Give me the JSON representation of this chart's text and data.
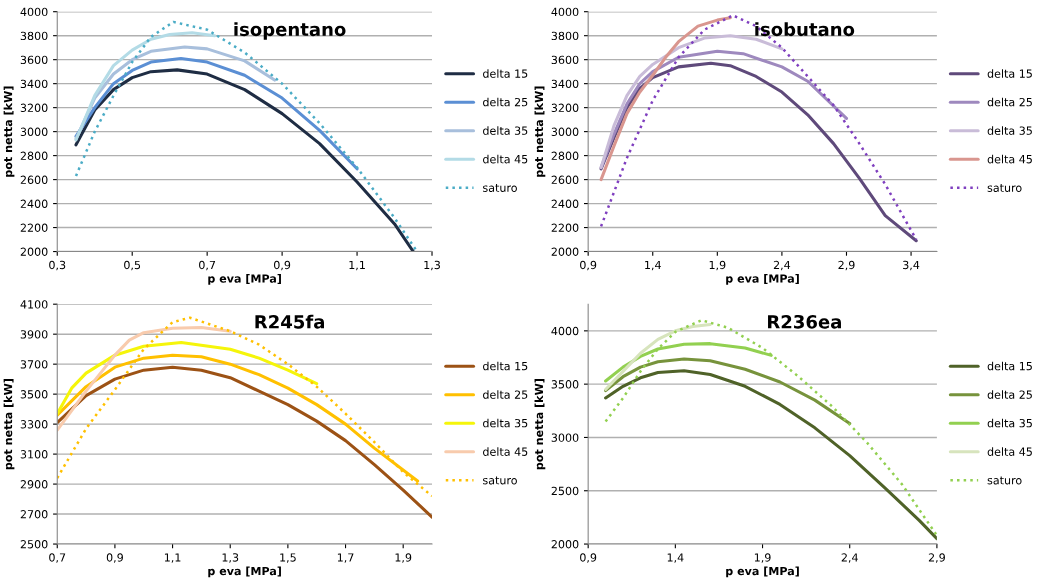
{
  "chart_data": [
    {
      "type": "line",
      "title": "isopentano",
      "xlabel": "p eva [MPa]",
      "ylabel": "pot netta [kW]",
      "grid": "y",
      "legend": "right",
      "xlim": [
        0.3,
        1.3
      ],
      "ylim": [
        2000,
        4000
      ],
      "xticks": [
        {
          "value": 0.3,
          "label": "0,3"
        },
        {
          "value": 0.5,
          "label": "0,5"
        },
        {
          "value": 0.7,
          "label": "0,7"
        },
        {
          "value": 0.9,
          "label": "0,9"
        },
        {
          "value": 1.1,
          "label": "1,1"
        },
        {
          "value": 1.3,
          "label": "1,3"
        }
      ],
      "yticks": [
        2000,
        2200,
        2400,
        2600,
        2800,
        3000,
        3200,
        3400,
        3600,
        3800,
        4000
      ],
      "series": [
        {
          "name": "delta 15",
          "color": "#1f2d44",
          "x": [
            0.35,
            0.4,
            0.45,
            0.5,
            0.55,
            0.62,
            0.7,
            0.8,
            0.9,
            1.0,
            1.1,
            1.2,
            1.25
          ],
          "values": [
            2890,
            3180,
            3350,
            3450,
            3500,
            3515,
            3480,
            3350,
            3150,
            2900,
            2580,
            2230,
            2000
          ]
        },
        {
          "name": "delta 25",
          "color": "#5b8fd4",
          "x": [
            0.35,
            0.4,
            0.45,
            0.5,
            0.55,
            0.63,
            0.7,
            0.8,
            0.9,
            1.0,
            1.1
          ],
          "values": [
            2960,
            3200,
            3400,
            3510,
            3580,
            3610,
            3580,
            3470,
            3280,
            3010,
            2690
          ]
        },
        {
          "name": "delta 35",
          "color": "#a8bfdc",
          "x": [
            0.35,
            0.4,
            0.45,
            0.5,
            0.55,
            0.64,
            0.7,
            0.8,
            0.88
          ],
          "values": [
            2940,
            3280,
            3480,
            3600,
            3670,
            3705,
            3690,
            3590,
            3430
          ]
        },
        {
          "name": "delta 45",
          "color": "#b3dbe6",
          "x": [
            0.35,
            0.4,
            0.45,
            0.5,
            0.55,
            0.6,
            0.66,
            0.72
          ],
          "values": [
            2930,
            3300,
            3550,
            3680,
            3770,
            3810,
            3825,
            3800
          ]
        },
        {
          "name": "saturo",
          "color": "#4bacc6",
          "line_style": "dotted",
          "x": [
            0.35,
            0.4,
            0.45,
            0.5,
            0.55,
            0.61,
            0.7,
            0.8,
            0.9,
            1.0,
            1.1,
            1.2,
            1.26
          ],
          "values": [
            2630,
            3000,
            3300,
            3580,
            3790,
            3915,
            3850,
            3660,
            3400,
            3070,
            2700,
            2280,
            2000
          ]
        }
      ]
    },
    {
      "type": "line",
      "title": "isobutano",
      "xlabel": "p eva [MPa]",
      "ylabel": "pot netta [kW]",
      "grid": "y",
      "legend": "right",
      "xlim": [
        0.9,
        3.6
      ],
      "ylim": [
        2000,
        4000
      ],
      "xticks": [
        {
          "value": 0.9,
          "label": "0,9"
        },
        {
          "value": 1.4,
          "label": "1,4"
        },
        {
          "value": 1.9,
          "label": "1,9"
        },
        {
          "value": 2.4,
          "label": "2,4"
        },
        {
          "value": 2.9,
          "label": "2,9"
        },
        {
          "value": 3.4,
          "label": "3,4"
        }
      ],
      "yticks": [
        2000,
        2200,
        2400,
        2600,
        2800,
        3000,
        3200,
        3400,
        3600,
        3800,
        4000
      ],
      "series": [
        {
          "name": "delta 15",
          "color": "#5f4a7b",
          "x": [
            1.0,
            1.1,
            1.2,
            1.3,
            1.4,
            1.6,
            1.85,
            2.0,
            2.2,
            2.4,
            2.6,
            2.8,
            3.0,
            3.2,
            3.44
          ],
          "values": [
            2690,
            2950,
            3200,
            3360,
            3450,
            3540,
            3570,
            3550,
            3460,
            3330,
            3140,
            2900,
            2610,
            2300,
            2090
          ]
        },
        {
          "name": "delta 25",
          "color": "#9e89be",
          "x": [
            1.0,
            1.1,
            1.2,
            1.3,
            1.4,
            1.6,
            1.9,
            2.1,
            2.4,
            2.6,
            2.9
          ],
          "values": [
            2700,
            2980,
            3230,
            3400,
            3500,
            3620,
            3670,
            3650,
            3540,
            3420,
            3110
          ]
        },
        {
          "name": "delta 35",
          "color": "#c9bcd8",
          "x": [
            1.0,
            1.1,
            1.2,
            1.3,
            1.4,
            1.6,
            1.8,
            2.0,
            2.2,
            2.4
          ],
          "values": [
            2700,
            3050,
            3300,
            3460,
            3560,
            3700,
            3780,
            3800,
            3770,
            3690
          ]
        },
        {
          "name": "delta 45",
          "color": "#d9968f",
          "x": [
            1.0,
            1.1,
            1.2,
            1.3,
            1.4,
            1.5,
            1.6,
            1.75,
            1.9,
            2.0
          ],
          "values": [
            2600,
            2880,
            3150,
            3330,
            3470,
            3620,
            3750,
            3880,
            3930,
            3950
          ]
        },
        {
          "name": "saturo",
          "color": "#7f3fbf",
          "line_style": "dotted",
          "x": [
            1.0,
            1.2,
            1.4,
            1.6,
            1.8,
            2.02,
            2.2,
            2.4,
            2.6,
            2.8,
            3.0,
            3.2,
            3.44
          ],
          "values": [
            2210,
            2780,
            3260,
            3620,
            3850,
            3970,
            3880,
            3700,
            3460,
            3220,
            2900,
            2560,
            2100
          ]
        }
      ]
    },
    {
      "type": "line",
      "title": "R245fa",
      "xlabel": "p eva [MPa]",
      "ylabel": "pot netta [kW]",
      "grid": "y",
      "legend": "right",
      "xlim": [
        0.7,
        2.0
      ],
      "ylim": [
        2500,
        4100
      ],
      "xticks": [
        {
          "value": 0.7,
          "label": "0,7"
        },
        {
          "value": 0.9,
          "label": "0,9"
        },
        {
          "value": 1.1,
          "label": "1,1"
        },
        {
          "value": 1.3,
          "label": "1,3"
        },
        {
          "value": 1.5,
          "label": "1,5"
        },
        {
          "value": 1.7,
          "label": "1,7"
        },
        {
          "value": 1.9,
          "label": "1,9"
        }
      ],
      "yticks": [
        2500,
        2700,
        2900,
        3100,
        3300,
        3500,
        3700,
        3900,
        4100
      ],
      "series": [
        {
          "name": "delta 15",
          "color": "#9c5215",
          "x": [
            0.7,
            0.8,
            0.9,
            1.0,
            1.1,
            1.2,
            1.3,
            1.4,
            1.5,
            1.6,
            1.7,
            1.8,
            1.9,
            2.0
          ],
          "values": [
            3310,
            3490,
            3600,
            3660,
            3680,
            3660,
            3610,
            3520,
            3430,
            3320,
            3190,
            3030,
            2860,
            2680
          ]
        },
        {
          "name": "delta 25",
          "color": "#ffc000",
          "x": [
            0.7,
            0.8,
            0.9,
            1.0,
            1.1,
            1.2,
            1.3,
            1.4,
            1.5,
            1.6,
            1.7,
            1.8,
            1.95
          ],
          "values": [
            3360,
            3550,
            3680,
            3740,
            3760,
            3750,
            3700,
            3630,
            3540,
            3430,
            3300,
            3140,
            2920
          ]
        },
        {
          "name": "delta 35",
          "color": "#f5f50a",
          "x": [
            0.7,
            0.75,
            0.8,
            0.9,
            1.0,
            1.13,
            1.3,
            1.4,
            1.5,
            1.6
          ],
          "values": [
            3370,
            3540,
            3640,
            3760,
            3820,
            3845,
            3800,
            3740,
            3660,
            3570
          ]
        },
        {
          "name": "delta 45",
          "color": "#f8cbad",
          "x": [
            0.7,
            0.8,
            0.9,
            0.95,
            1.0,
            1.1,
            1.2,
            1.3
          ],
          "values": [
            3260,
            3520,
            3760,
            3860,
            3910,
            3940,
            3945,
            3920
          ]
        },
        {
          "name": "saturo",
          "color": "#ffc000",
          "line_style": "dotted",
          "x": [
            0.7,
            0.8,
            0.9,
            1.0,
            1.1,
            1.16,
            1.3,
            1.4,
            1.5,
            1.6,
            1.7,
            1.8,
            1.9,
            2.0
          ],
          "values": [
            2940,
            3270,
            3530,
            3800,
            3980,
            4010,
            3920,
            3830,
            3700,
            3550,
            3370,
            3180,
            2980,
            2820
          ]
        }
      ]
    },
    {
      "type": "line",
      "title": "R236ea",
      "xlabel": "p eva [MPa]",
      "ylabel": "pot netta [kW]",
      "grid": "y",
      "legend": "right",
      "xlim": [
        0.9,
        2.9
      ],
      "ylim": [
        2000,
        4250
      ],
      "xticks": [
        {
          "value": 0.9,
          "label": "0,9"
        },
        {
          "value": 1.4,
          "label": "1,4"
        },
        {
          "value": 1.9,
          "label": "1,9"
        },
        {
          "value": 2.4,
          "label": "2,4"
        },
        {
          "value": 2.9,
          "label": "2,9"
        }
      ],
      "yticks": [
        2000,
        2500,
        3000,
        3500,
        4000
      ],
      "series": [
        {
          "name": "delta 15",
          "color": "#4f6228",
          "x": [
            1.0,
            1.1,
            1.2,
            1.3,
            1.45,
            1.6,
            1.8,
            2.0,
            2.2,
            2.4,
            2.6,
            2.8,
            2.9
          ],
          "values": [
            3370,
            3480,
            3560,
            3610,
            3625,
            3590,
            3480,
            3310,
            3090,
            2830,
            2530,
            2220,
            2050
          ]
        },
        {
          "name": "delta 25",
          "color": "#77933c",
          "x": [
            1.0,
            1.1,
            1.2,
            1.3,
            1.45,
            1.6,
            1.8,
            2.0,
            2.2,
            2.4
          ],
          "values": [
            3440,
            3570,
            3660,
            3710,
            3735,
            3720,
            3640,
            3520,
            3350,
            3130
          ]
        },
        {
          "name": "delta 35",
          "color": "#92d050",
          "x": [
            1.0,
            1.1,
            1.2,
            1.3,
            1.45,
            1.6,
            1.8,
            1.95
          ],
          "values": [
            3530,
            3660,
            3760,
            3830,
            3875,
            3880,
            3840,
            3770
          ]
        },
        {
          "name": "delta 45",
          "color": "#d7e4bd",
          "x": [
            1.0,
            1.1,
            1.2,
            1.3,
            1.4,
            1.5,
            1.6
          ],
          "values": [
            3450,
            3620,
            3790,
            3920,
            4000,
            4040,
            4060
          ]
        },
        {
          "name": "saturo",
          "color": "#92d050",
          "line_style": "dotted",
          "x": [
            1.0,
            1.1,
            1.2,
            1.3,
            1.4,
            1.55,
            1.7,
            1.9,
            2.1,
            2.3,
            2.5,
            2.7,
            2.9
          ],
          "values": [
            3150,
            3370,
            3620,
            3830,
            3990,
            4100,
            4030,
            3840,
            3580,
            3290,
            2950,
            2560,
            2080
          ]
        }
      ]
    }
  ]
}
